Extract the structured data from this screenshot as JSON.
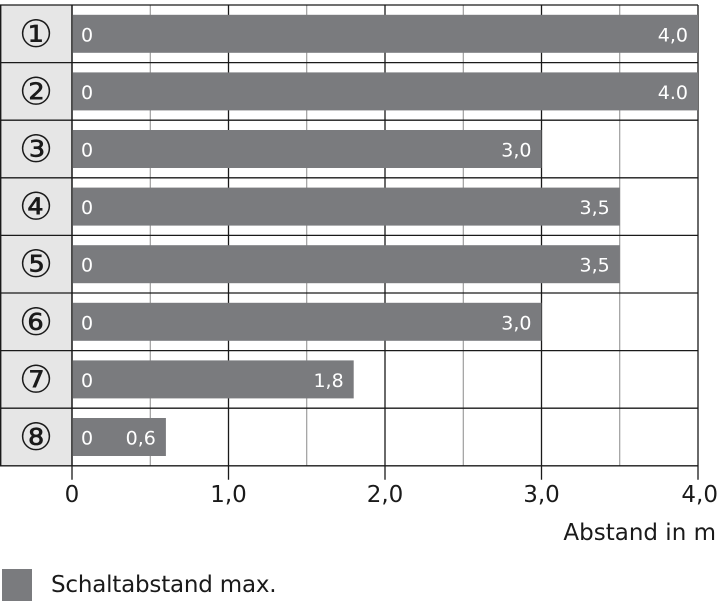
{
  "chart_data": {
    "type": "bar",
    "orientation": "horizontal",
    "categories": [
      "①",
      "②",
      "③",
      "④",
      "⑤",
      "⑥",
      "⑦",
      "⑧"
    ],
    "start_label": "0",
    "values": [
      4.0,
      4.0,
      3.0,
      3.5,
      3.5,
      3.0,
      1.8,
      0.6
    ],
    "value_labels": [
      "4,0",
      "4.0",
      "3,0",
      "3,5",
      "3,5",
      "3,0",
      "1,8",
      "0,6"
    ],
    "xlim": [
      0,
      4.0
    ],
    "xticks": [
      0,
      1.0,
      2.0,
      3.0,
      4.0
    ],
    "xtick_labels": [
      "0",
      "1,0",
      "2,0",
      "3,0",
      "4,0"
    ],
    "xlabel": "Abstand in m",
    "grid": true,
    "legend": {
      "position": "bottom-left",
      "entries": [
        {
          "label": "Schaltabstand max.",
          "color": "#7a7b7e"
        }
      ]
    },
    "colors": {
      "bar": "#7a7b7e",
      "label_column": "#e6e6e6",
      "grid": "#1a1a1a"
    }
  }
}
